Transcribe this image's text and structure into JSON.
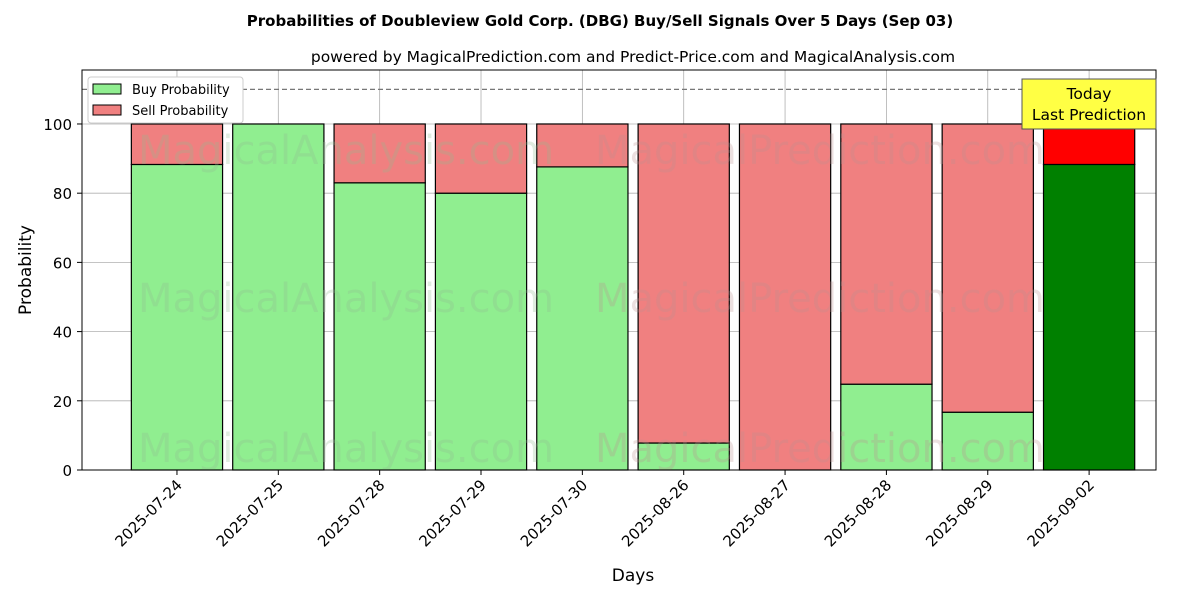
{
  "chart_data": {
    "type": "bar",
    "stacked": true,
    "title": "Probabilities of Doubleview Gold Corp. (DBG) Buy/Sell Signals Over 5 Days (Sep 03)",
    "subtitle": "powered by MagicalPrediction.com and Predict-Price.com and MagicalAnalysis.com",
    "xlabel": "Days",
    "ylabel": "Probability",
    "ylim": [
      0,
      115.6
    ],
    "yticks": [
      0,
      20,
      40,
      60,
      80,
      100
    ],
    "grid": true,
    "legend_position": "top-left",
    "categories": [
      "2025-07-24",
      "2025-07-25",
      "2025-07-28",
      "2025-07-29",
      "2025-07-30",
      "2025-08-26",
      "2025-08-27",
      "2025-08-28",
      "2025-08-29",
      "2025-09-02"
    ],
    "series": [
      {
        "name": "Buy Probability",
        "color": "#90ee90",
        "highlight_color": "#008000",
        "values": [
          88.3,
          100,
          83.0,
          80.0,
          87.6,
          7.8,
          0,
          24.8,
          16.7,
          88.3
        ]
      },
      {
        "name": "Sell Probability",
        "color": "#f08080",
        "highlight_color": "#ff0000",
        "values": [
          11.7,
          0,
          17.0,
          20.0,
          12.4,
          92.2,
          100,
          75.2,
          83.3,
          11.7
        ]
      }
    ],
    "reference_line": 110,
    "annotation": {
      "line1": "Today",
      "line2": "Last Prediction",
      "category": "2025-09-02",
      "color": "#ffff44"
    },
    "watermarks": [
      "MagicalAnalysis.com",
      "MagicalPrediction.com"
    ]
  }
}
